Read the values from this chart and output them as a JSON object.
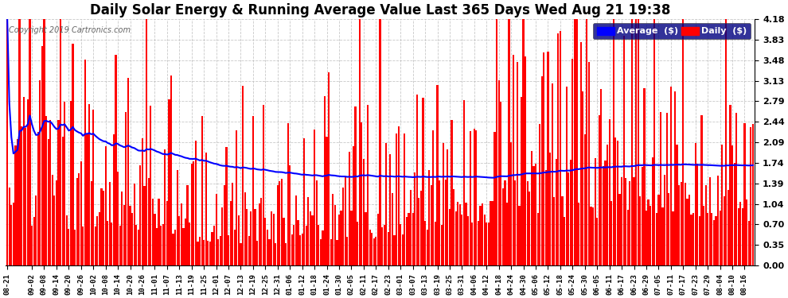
{
  "title": "Daily Solar Energy & Running Average Value Last 365 Days Wed Aug 21 19:38",
  "copyright": "Copyright 2019 Cartronics.com",
  "ylabel_right_ticks": [
    0.0,
    0.35,
    0.7,
    1.04,
    1.39,
    1.74,
    2.09,
    2.44,
    2.79,
    3.13,
    3.48,
    3.83,
    4.18
  ],
  "ylim": [
    0.0,
    4.18
  ],
  "bar_color": "#FF0000",
  "avg_color": "#0000FF",
  "background_color": "#FFFFFF",
  "grid_color": "#BBBBBB",
  "legend_avg_label": "Average  ($)",
  "legend_daily_label": "Daily  ($)",
  "n_days": 365,
  "title_fontsize": 12,
  "copyright_fontsize": 7,
  "xtick_labels": [
    "08-21",
    "09-02",
    "09-08",
    "09-14",
    "09-20",
    "09-26",
    "10-02",
    "10-08",
    "10-14",
    "10-20",
    "10-26",
    "11-01",
    "11-07",
    "11-13",
    "11-19",
    "11-25",
    "12-01",
    "12-07",
    "12-13",
    "12-19",
    "12-25",
    "12-31",
    "01-06",
    "01-12",
    "01-18",
    "01-24",
    "01-30",
    "02-05",
    "02-11",
    "02-17",
    "02-23",
    "03-01",
    "03-07",
    "03-13",
    "03-19",
    "03-25",
    "03-31",
    "04-06",
    "04-12",
    "04-18",
    "04-24",
    "04-30",
    "05-06",
    "05-12",
    "05-18",
    "05-24",
    "05-30",
    "06-05",
    "06-11",
    "06-17",
    "06-23",
    "06-29",
    "07-05",
    "07-11",
    "07-17",
    "07-23",
    "07-29",
    "08-04",
    "08-10",
    "08-16"
  ],
  "xtick_offsets": [
    0,
    12,
    18,
    24,
    30,
    36,
    42,
    48,
    54,
    60,
    66,
    72,
    78,
    84,
    90,
    96,
    102,
    108,
    114,
    120,
    126,
    132,
    138,
    144,
    150,
    156,
    162,
    168,
    174,
    180,
    186,
    192,
    198,
    204,
    210,
    216,
    222,
    228,
    234,
    240,
    246,
    252,
    258,
    264,
    270,
    276,
    282,
    288,
    294,
    300,
    306,
    312,
    318,
    324,
    330,
    336,
    342,
    348,
    354,
    360
  ]
}
